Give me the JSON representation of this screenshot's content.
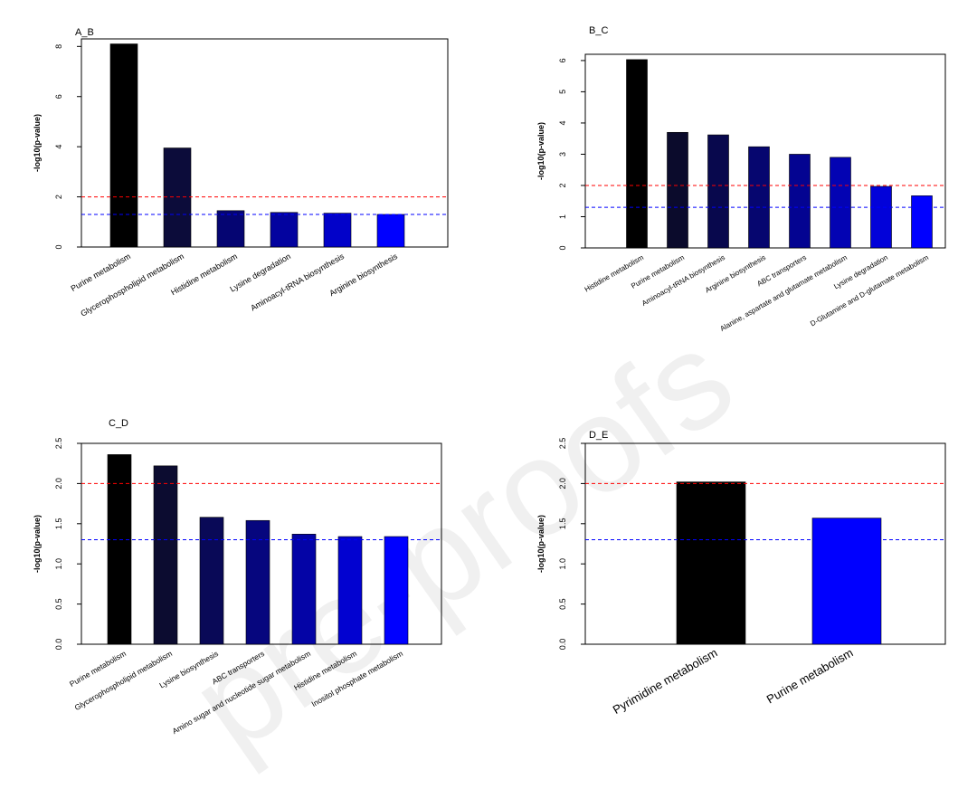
{
  "watermark": "pre-proofs",
  "thresholds": {
    "red": {
      "value": 2,
      "color": "#ff0000"
    },
    "blue": {
      "value": 1.301,
      "color": "#0000ff"
    }
  },
  "chart_data": [
    {
      "type": "bar",
      "title": "A_B",
      "ylabel": "-log10(p-value)",
      "ylim": [
        0,
        8.3
      ],
      "yticks": [
        0,
        2,
        4,
        6,
        8
      ],
      "categories": [
        "Purine metabolism",
        "Glycerophospholipid metabolism",
        "Histidine metabolism",
        "Lysine degradation",
        "Aminoacyl-tRNA biosynthesis",
        "Arginine biosynthesis"
      ],
      "values": [
        8.1,
        3.95,
        1.45,
        1.38,
        1.35,
        1.3
      ],
      "colors": [
        "#000000",
        "#0c0c3a",
        "#050572",
        "#03039f",
        "#0202c9",
        "#0000ff"
      ],
      "reference_lines": [
        2,
        1.301
      ]
    },
    {
      "type": "bar",
      "title": "B_C",
      "ylabel": "-log10(p-value)",
      "ylim": [
        0,
        6.2
      ],
      "yticks": [
        0,
        1,
        2,
        3,
        4,
        5,
        6
      ],
      "categories": [
        "Histidine metabolism",
        "Purine metabolism",
        "Aminoacyl-tRNA biosynthesis",
        "Arginine biosynthesis",
        "ABC transporters",
        "Alanine, aspartate and glutamate metabolism",
        "Lysine degradation",
        "D-Glutamine and D-glutamate metabolism"
      ],
      "values": [
        6.03,
        3.7,
        3.62,
        3.24,
        3.0,
        2.9,
        1.97,
        1.67
      ],
      "colors": [
        "#000000",
        "#0b0b2c",
        "#08084d",
        "#06066f",
        "#040491",
        "#0303b3",
        "#0202d9",
        "#0000ff"
      ],
      "reference_lines": [
        2,
        1.301
      ]
    },
    {
      "type": "bar",
      "title": "C_D",
      "ylabel": "-log10(p-value)",
      "ylim": [
        0,
        2.5
      ],
      "yticks": [
        0.0,
        0.5,
        1.0,
        1.5,
        2.0,
        2.5
      ],
      "ytick_labels": [
        "0.0",
        "0.5",
        "1.0",
        "1.5",
        "2.0",
        "2.5"
      ],
      "categories": [
        "Purine metabolism",
        "Glycerophospholipid metabolism",
        "Lysine biosynthesis",
        "ABC transporters",
        "Amino sugar and nucleotide sugar metabolism",
        "Histidine metabolism",
        "Inositol phosphate metabolism"
      ],
      "values": [
        2.36,
        2.22,
        1.58,
        1.54,
        1.37,
        1.34,
        1.34
      ],
      "colors": [
        "#000000",
        "#0c0c30",
        "#090957",
        "#06067e",
        "#0404a6",
        "#0202d0",
        "#0000ff"
      ],
      "reference_lines": [
        2,
        1.301
      ]
    },
    {
      "type": "bar",
      "title": "D_E",
      "ylabel": "-log10(p-value)",
      "ylim": [
        0,
        2.5
      ],
      "yticks": [
        0.0,
        0.5,
        1.0,
        1.5,
        2.0,
        2.5
      ],
      "ytick_labels": [
        "0.0",
        "0.5",
        "1.0",
        "1.5",
        "2.0",
        "2.5"
      ],
      "categories": [
        "Pyrimidine metabolism",
        "Purine metabolism"
      ],
      "values": [
        2.02,
        1.57
      ],
      "colors": [
        "#000000",
        "#0000ff"
      ],
      "reference_lines": [
        2,
        1.301
      ]
    }
  ]
}
